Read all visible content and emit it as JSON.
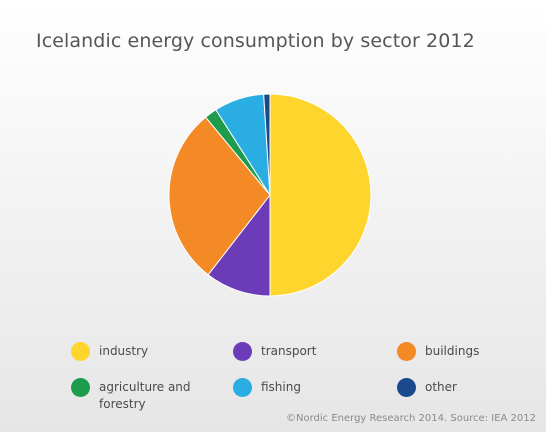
{
  "chart_data": {
    "type": "pie",
    "title": "Icelandic energy consumption by sector 2012",
    "categories": [
      "industry",
      "transport",
      "buildings",
      "agriculture and forestry",
      "fishing",
      "other"
    ],
    "values": [
      50,
      10.5,
      28.5,
      2,
      8,
      1
    ],
    "colors": [
      "#fdd52c",
      "#6b3bb8",
      "#f38a25",
      "#1e9c4e",
      "#2aade3",
      "#1a4a8c"
    ],
    "legend_position": "bottom",
    "source": "©Nordic Energy Research 2014. Source: IEA 2012"
  }
}
